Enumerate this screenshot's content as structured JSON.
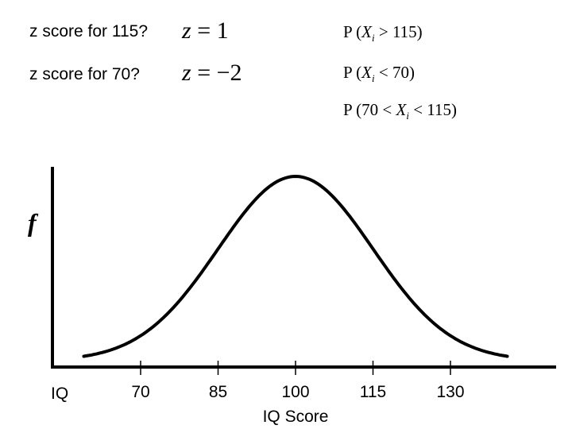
{
  "questions": {
    "q115": {
      "label": "z score for 115?",
      "equation": "z = 1",
      "eq_lhs": "z",
      "eq_op": "=",
      "eq_rhs": "1"
    },
    "q70": {
      "label": "z score for 70?",
      "equation": "z = −2",
      "eq_lhs": "z",
      "eq_op": "=",
      "eq_rhs": "−2"
    }
  },
  "probabilities": {
    "p1": {
      "prefix": "P (",
      "var": "X",
      "sub": "i",
      "rest": " > 115)"
    },
    "p2": {
      "prefix": "P (",
      "var": "X",
      "sub": "i",
      "rest": " < 70)"
    },
    "p3": {
      "prefix": "P (70 < ",
      "var": "X",
      "sub": "i",
      "rest": " < 115)"
    }
  },
  "chart_data": {
    "type": "line",
    "ylabel": "f",
    "xlabel": "IQ Score",
    "x_axis_start_label": "IQ",
    "mean": 100,
    "sd": 15,
    "x_ticks": [
      70,
      85,
      100,
      115,
      130
    ],
    "xlim": [
      55,
      145
    ],
    "curve": "normal density"
  },
  "colors": {
    "ink": "#000000",
    "background": "#ffffff"
  }
}
